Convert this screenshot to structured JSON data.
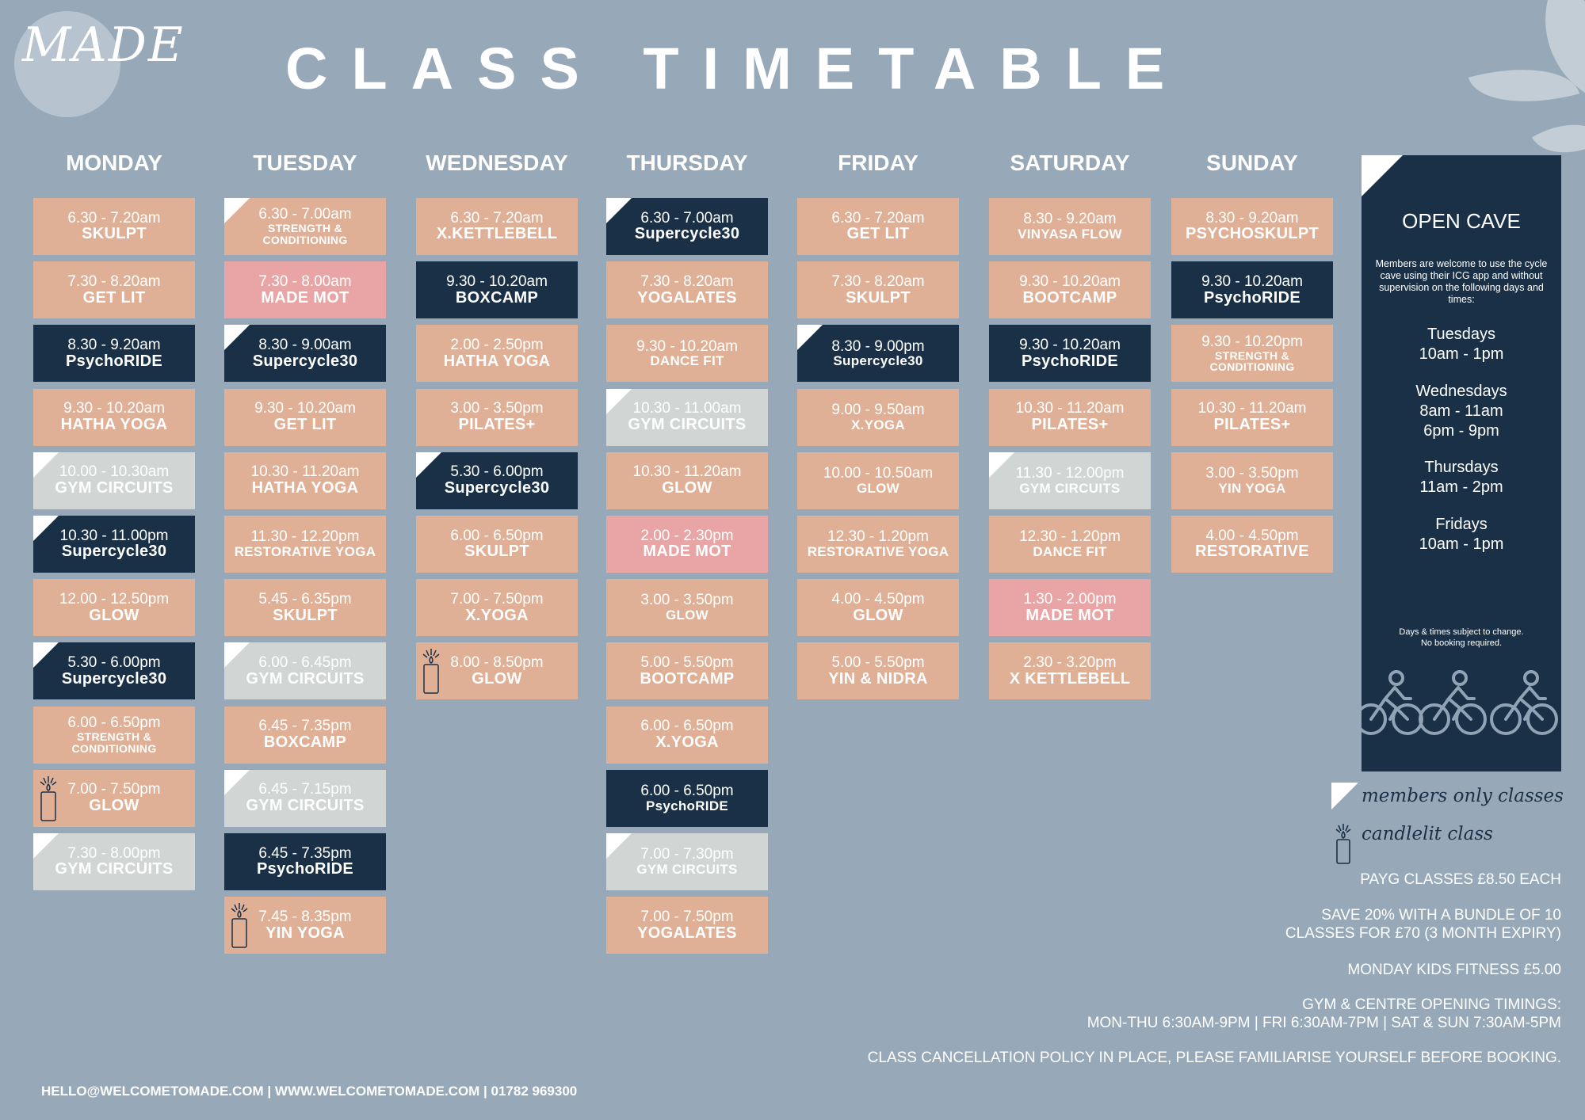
{
  "logo": {
    "text": "MADE"
  },
  "title": "CLASS TIMETABLE",
  "days": [
    {
      "name": "MONDAY",
      "classes": [
        {
          "time": "6.30 - 7.20am",
          "name": "SKULPT",
          "color": "peach"
        },
        {
          "time": "7.30 - 8.20am",
          "name": "GET LIT",
          "color": "peach"
        },
        {
          "time": "8.30 - 9.20am",
          "name": "PsychoRIDE",
          "color": "navy"
        },
        {
          "time": "9.30 - 10.20am",
          "name": "HATHA YOGA",
          "color": "peach"
        },
        {
          "time": "10.00 - 10.30am",
          "name": "GYM CIRCUITS",
          "color": "grey",
          "members": true
        },
        {
          "time": "10.30 - 11.00pm",
          "name": "Supercycle30",
          "color": "navy",
          "members": true
        },
        {
          "time": "12.00 - 12.50pm",
          "name": "GLOW",
          "color": "peach"
        },
        {
          "time": "5.30 - 6.00pm",
          "name": "Supercycle30",
          "color": "navy",
          "members": true
        },
        {
          "time": "6.00 - 6.50pm",
          "name": "STRENGTH & CONDITIONING",
          "color": "peach",
          "small": true
        },
        {
          "time": "7.00 - 7.50pm",
          "name": "GLOW",
          "color": "peach",
          "candle": true
        },
        {
          "time": "7.30 - 8.00pm",
          "name": "GYM CIRCUITS",
          "color": "grey",
          "members": true
        }
      ]
    },
    {
      "name": "TUESDAY",
      "classes": [
        {
          "time": "6.30 - 7.00am",
          "name": "STRENGTH & CONDITIONING",
          "color": "peach",
          "small": true,
          "members": true
        },
        {
          "time": "7.30 - 8.00am",
          "name": "MADE MOT",
          "color": "pink"
        },
        {
          "time": "8.30 - 9.00am",
          "name": "Supercycle30",
          "color": "navy",
          "members": true
        },
        {
          "time": "9.30 - 10.20am",
          "name": "GET LIT",
          "color": "peach"
        },
        {
          "time": "10.30 - 11.20am",
          "name": "HATHA YOGA",
          "color": "peach"
        },
        {
          "time": "11.30 - 12.20pm",
          "name": "RESTORATIVE YOGA",
          "color": "peach",
          "medium": true
        },
        {
          "time": "5.45 - 6.35pm",
          "name": "SKULPT",
          "color": "peach"
        },
        {
          "time": "6.00 - 6.45pm",
          "name": "GYM CIRCUITS",
          "color": "grey",
          "members": true
        },
        {
          "time": "6.45 - 7.35pm",
          "name": "BOXCAMP",
          "color": "peach"
        },
        {
          "time": "6.45 - 7.15pm",
          "name": "GYM CIRCUITS",
          "color": "grey",
          "members": true
        },
        {
          "time": "6.45 - 7.35pm",
          "name": "PsychoRIDE",
          "color": "navy"
        },
        {
          "time": "7.45 - 8.35pm",
          "name": "YIN YOGA",
          "color": "peach",
          "candle": true
        }
      ]
    },
    {
      "name": "WEDNESDAY",
      "classes": [
        {
          "time": "6.30 - 7.20am",
          "name": "X.KETTLEBELL",
          "color": "peach"
        },
        {
          "time": "9.30 - 10.20am",
          "name": "BOXCAMP",
          "color": "navy"
        },
        {
          "time": "2.00 - 2.50pm",
          "name": "HATHA YOGA",
          "color": "peach"
        },
        {
          "time": "3.00 - 3.50pm",
          "name": "PILATES+",
          "color": "peach"
        },
        {
          "time": "5.30 - 6.00pm",
          "name": "Supercycle30",
          "color": "navy",
          "members": true
        },
        {
          "time": "6.00 - 6.50pm",
          "name": "SKULPT",
          "color": "peach"
        },
        {
          "time": "7.00 - 7.50pm",
          "name": "X.YOGA",
          "color": "peach"
        },
        {
          "time": "8.00 - 8.50pm",
          "name": "GLOW",
          "color": "peach",
          "candle": true
        }
      ]
    },
    {
      "name": "THURSDAY",
      "classes": [
        {
          "time": "6.30 - 7.00am",
          "name": "Supercycle30",
          "color": "navy",
          "members": true
        },
        {
          "time": "7.30 - 8.20am",
          "name": "YOGALATES",
          "color": "peach"
        },
        {
          "time": "9.30 - 10.20am",
          "name": "DANCE FIT",
          "color": "peach",
          "medium": true
        },
        {
          "time": "10.30 - 11.00am",
          "name": "GYM CIRCUITS",
          "color": "grey",
          "members": true
        },
        {
          "time": "10.30 - 11.20am",
          "name": "GLOW",
          "color": "peach"
        },
        {
          "time": "2.00 - 2.30pm",
          "name": "MADE MOT",
          "color": "pink"
        },
        {
          "time": "3.00 - 3.50pm",
          "name": "GLOW",
          "color": "peach",
          "medium": true
        },
        {
          "time": "5.00 - 5.50pm",
          "name": "BOOTCAMP",
          "color": "peach"
        },
        {
          "time": "6.00 - 6.50pm",
          "name": "X.YOGA",
          "color": "peach"
        },
        {
          "time": "6.00 - 6.50pm",
          "name": "PsychoRIDE",
          "color": "navy",
          "medium": true
        },
        {
          "time": "7.00 - 7.30pm",
          "name": "GYM CIRCUITS",
          "color": "grey",
          "members": true,
          "medium": true
        },
        {
          "time": "7.00 - 7.50pm",
          "name": "YOGALATES",
          "color": "peach"
        }
      ]
    },
    {
      "name": "FRIDAY",
      "classes": [
        {
          "time": "6.30 - 7.20am",
          "name": "GET LIT",
          "color": "peach"
        },
        {
          "time": "7.30 - 8.20am",
          "name": "SKULPT",
          "color": "peach"
        },
        {
          "time": "8.30 - 9.00pm",
          "name": "Supercycle30",
          "color": "navy",
          "members": true,
          "medium": true
        },
        {
          "time": "9.00 - 9.50am",
          "name": "X.YOGA",
          "color": "peach",
          "medium": true
        },
        {
          "time": "10.00 - 10.50am",
          "name": "GLOW",
          "color": "peach",
          "medium": true
        },
        {
          "time": "12.30 - 1.20pm",
          "name": "RESTORATIVE YOGA",
          "color": "peach",
          "medium": true
        },
        {
          "time": "4.00 - 4.50pm",
          "name": "GLOW",
          "color": "peach"
        },
        {
          "time": "5.00 - 5.50pm",
          "name": "YIN & NIDRA",
          "color": "peach"
        }
      ]
    },
    {
      "name": "SATURDAY",
      "classes": [
        {
          "time": "8.30 - 9.20am",
          "name": "VINYASA FLOW",
          "color": "peach",
          "medium": true
        },
        {
          "time": "9.30 - 10.20am",
          "name": "BOOTCAMP",
          "color": "peach"
        },
        {
          "time": "9.30 - 10.20am",
          "name": "PsychoRIDE",
          "color": "navy"
        },
        {
          "time": "10.30 - 11.20am",
          "name": "PILATES+",
          "color": "peach"
        },
        {
          "time": "11.30 - 12.00pm",
          "name": "GYM CIRCUITS",
          "color": "grey",
          "members": true,
          "medium": true
        },
        {
          "time": "12.30 - 1.20pm",
          "name": "DANCE FIT",
          "color": "peach",
          "medium": true
        },
        {
          "time": "1.30 - 2.00pm",
          "name": "MADE MOT",
          "color": "pink"
        },
        {
          "time": "2.30 - 3.20pm",
          "name": "X KETTLEBELL",
          "color": "peach"
        }
      ]
    },
    {
      "name": "SUNDAY",
      "classes": [
        {
          "time": "8.30 - 9.20am",
          "name": "PSYCHOSKULPT",
          "color": "peach"
        },
        {
          "time": "9.30 - 10.20am",
          "name": "PsychoRIDE",
          "color": "navy"
        },
        {
          "time": "9.30 - 10.20pm",
          "name": "STRENGTH & CONDITIONING",
          "color": "peach",
          "small": true
        },
        {
          "time": "10.30 - 11.20am",
          "name": "PILATES+",
          "color": "peach"
        },
        {
          "time": "3.00 - 3.50pm",
          "name": "YIN YOGA",
          "color": "peach",
          "medium": true
        },
        {
          "time": "4.00 - 4.50pm",
          "name": "RESTORATIVE",
          "color": "peach"
        }
      ]
    }
  ],
  "colors": {
    "peach": "#e0b096",
    "navy": "#1a3046",
    "pink": "#e9a5a5",
    "grey": "#d1d6d5",
    "background": "#97a9b9"
  },
  "open_cave": {
    "title": "OPEN CAVE",
    "description": "Members are welcome to use the cycle cave using their ICG app and without supervision on the following days and times:",
    "schedule": [
      {
        "day": "Tuesdays",
        "times": [
          "10am - 1pm"
        ]
      },
      {
        "day": "Wednesdays",
        "times": [
          "8am - 11am",
          "6pm - 9pm"
        ]
      },
      {
        "day": "Thursdays",
        "times": [
          "11am - 2pm"
        ]
      },
      {
        "day": "Fridays",
        "times": [
          "10am - 1pm"
        ]
      }
    ],
    "note_1": "Days & times subject to change.",
    "note_2": "No booking required.",
    "icons": [
      "cyclist-icon",
      "cyclist-icon",
      "cyclist-icon"
    ]
  },
  "legend": {
    "members": "members only classes",
    "candle": "candlelit class"
  },
  "info": {
    "payg": "PAYG CLASSES £8.50 EACH",
    "bundle_1": "SAVE 20% WITH A BUNDLE OF 10",
    "bundle_2": "CLASSES  FOR £70 (3 MONTH EXPIRY)",
    "kids": "MONDAY KIDS FITNESS £5.00",
    "opening_1": "GYM & CENTRE OPENING TIMINGS:",
    "opening_2": "MON-THU 6:30AM-9PM | FRI 6:30AM-7PM | SAT & SUN 7:30AM-5PM",
    "cancellation": "CLASS CANCELLATION POLICY IN PLACE, PLEASE FAMILIARISE YOURSELF BEFORE BOOKING."
  },
  "footer": {
    "contact": "HELLO@WELCOMETOMADE.COM  |  WWW.WELCOMETOMADE.COM   |  01782 969300"
  }
}
